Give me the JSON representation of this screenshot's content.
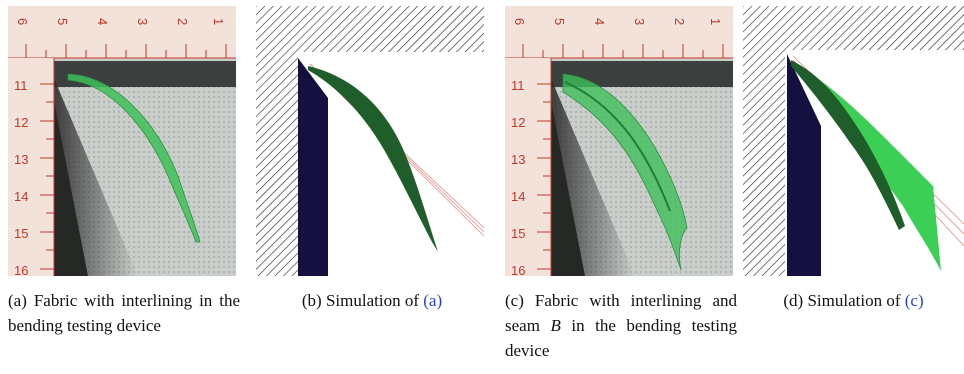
{
  "panels": [
    {
      "id": "a",
      "kind": "photo",
      "caption_prefix": "(a)",
      "caption_text": "Fabric with interlining in the bending testing device",
      "ruler_top": [
        "6",
        "5",
        "4",
        "3",
        "2",
        "1"
      ],
      "ruler_left": [
        "11",
        "12",
        "13",
        "14",
        "15",
        "16"
      ]
    },
    {
      "id": "b",
      "kind": "simulation",
      "caption_prefix": "(b)",
      "caption_text": "Simulation of",
      "caption_ref": "(a)"
    },
    {
      "id": "c",
      "kind": "photo",
      "caption_prefix": "(c)",
      "caption_text": "Fabric with interlining and seam B in the bending testing device",
      "ruler_top": [
        "6",
        "5",
        "4",
        "3",
        "2",
        "1"
      ],
      "ruler_left": [
        "11",
        "12",
        "13",
        "14",
        "15",
        "16"
      ]
    },
    {
      "id": "d",
      "kind": "simulation",
      "caption_prefix": "(d)",
      "caption_text": "Simulation of",
      "caption_ref": "(c)"
    }
  ],
  "colors": {
    "ruler": "#f3e2da",
    "ruler_marks": "#c0392b",
    "fabric_photo": "#3fbf5a",
    "block": "#14103f",
    "sim_fabric_dark": "#1f5e2a",
    "sim_fabric_light": "#3ccf55",
    "laser_line": "#f08a8a"
  }
}
